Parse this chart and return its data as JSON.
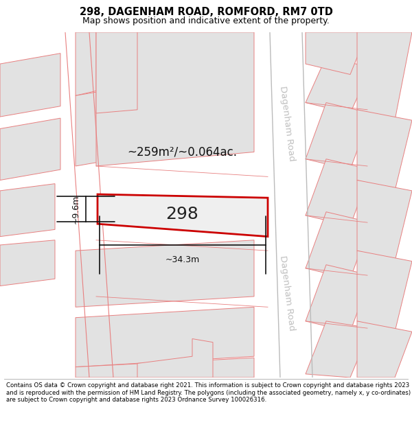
{
  "title": "298, DAGENHAM ROAD, ROMFORD, RM7 0TD",
  "subtitle": "Map shows position and indicative extent of the property.",
  "footer": "Contains OS data © Crown copyright and database right 2021. This information is subject to Crown copyright and database rights 2023 and is reproduced with the permission of HM Land Registry. The polygons (including the associated geometry, namely x, y co-ordinates) are subject to Crown copyright and database rights 2023 Ordnance Survey 100026316.",
  "map_bg": "#f9f9f9",
  "parcel_fill": "#e2e2e2",
  "parcel_edge": "#e88080",
  "highlight_fill": "#efefef",
  "highlight_edge": "#cc0000",
  "road_label_color": "#c0c0c0",
  "measure_color": "#111111",
  "area_text": "~259m²/~0.064ac.",
  "width_text": "~34.3m",
  "height_text": "~9.6m",
  "parcel_number": "298",
  "title_fontsize": 10.5,
  "subtitle_fontsize": 9,
  "footer_fontsize": 6.2,
  "road_label_fontsize": 9.5,
  "parcel_label_fontsize": 18,
  "area_fontsize": 12
}
